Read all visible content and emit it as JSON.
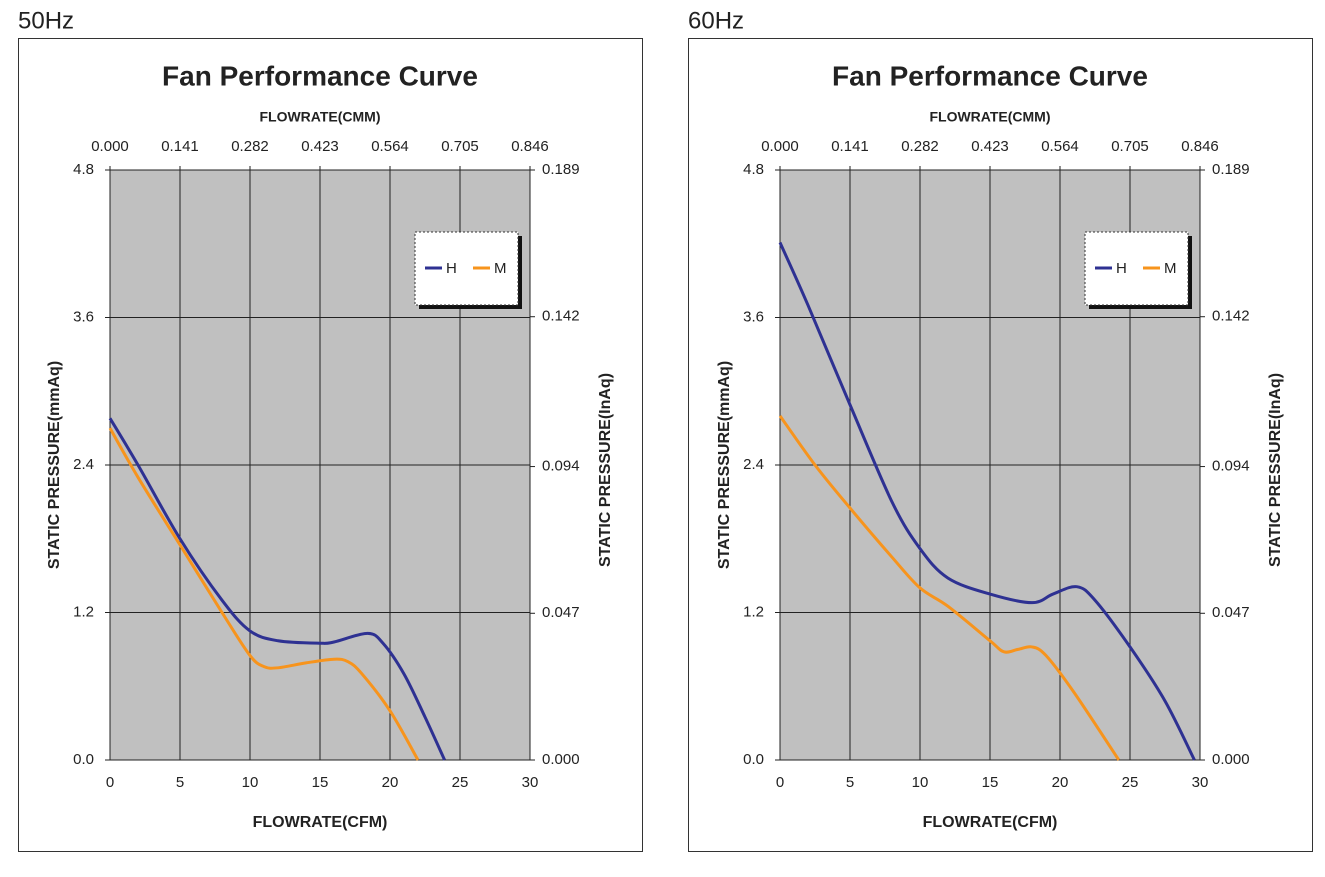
{
  "chart_data": [
    {
      "type": "line",
      "heading": "50Hz",
      "title": "Fan Performance Curve",
      "x_label": "FLOWRATE(CFM)",
      "x2_label": "FLOWRATE(CMM)",
      "y_label": "STATIC PRESSURE(mmAq)",
      "y2_label": "STATIC PRESSURE(InAq)",
      "xlim": [
        0,
        30
      ],
      "xticks": [
        0,
        5,
        10,
        15,
        20,
        25,
        30
      ],
      "x2lim": [
        0,
        0.846
      ],
      "x2ticks": [
        {
          "value": 0,
          "label": "0.000"
        },
        0.141,
        0.282,
        0.423,
        0.564,
        0.705,
        0.846
      ],
      "ylim": [
        0,
        4.8
      ],
      "yticks": [
        {
          "value": 0,
          "label": "0.0"
        },
        1.2,
        2.4,
        3.6,
        4.8
      ],
      "y2lim": [
        0,
        0.189
      ],
      "y2ticks": [
        {
          "value": 0,
          "label": "0.000"
        },
        0.047,
        0.094,
        0.142,
        0.189
      ],
      "grid": true,
      "legend": "upper right",
      "series": [
        {
          "name": "H",
          "color": "#2e3192",
          "x": [
            0,
            2,
            5,
            8,
            10,
            12,
            15,
            16,
            18.4,
            19.5,
            21,
            22.5,
            23.9
          ],
          "values": [
            2.78,
            2.4,
            1.8,
            1.3,
            1.05,
            0.97,
            0.95,
            0.96,
            1.03,
            0.95,
            0.7,
            0.35,
            0
          ]
        },
        {
          "name": "M",
          "color": "#f7941d",
          "x": [
            0,
            2,
            5,
            8,
            10,
            11,
            12,
            14,
            16,
            17,
            18,
            20,
            22
          ],
          "values": [
            2.7,
            2.3,
            1.75,
            1.2,
            0.85,
            0.76,
            0.75,
            0.79,
            0.82,
            0.8,
            0.7,
            0.4,
            0
          ]
        }
      ]
    },
    {
      "type": "line",
      "heading": "60Hz",
      "title": "Fan Performance Curve",
      "x_label": "FLOWRATE(CFM)",
      "x2_label": "FLOWRATE(CMM)",
      "y_label": "STATIC PRESSURE(mmAq)",
      "y2_label": "STATIC PRESSURE(InAq)",
      "xlim": [
        0,
        30
      ],
      "xticks": [
        0,
        5,
        10,
        15,
        20,
        25,
        30
      ],
      "x2lim": [
        0,
        0.846
      ],
      "x2ticks": [
        {
          "value": 0,
          "label": "0.000"
        },
        0.141,
        0.282,
        0.423,
        0.564,
        0.705,
        0.846
      ],
      "ylim": [
        0,
        4.8
      ],
      "yticks": [
        {
          "value": 0,
          "label": "0.0"
        },
        1.2,
        2.4,
        3.6,
        4.8
      ],
      "y2lim": [
        0,
        0.189
      ],
      "y2ticks": [
        {
          "value": 0,
          "label": "0.000"
        },
        0.047,
        0.094,
        0.142,
        0.189
      ],
      "grid": true,
      "legend": "upper right",
      "series": [
        {
          "name": "H",
          "color": "#2e3192",
          "x": [
            0,
            2,
            5,
            8,
            10,
            12,
            15,
            18,
            19.5,
            21.2,
            22.5,
            25,
            27.5,
            29.6
          ],
          "values": [
            4.21,
            3.7,
            2.89,
            2.1,
            1.72,
            1.48,
            1.35,
            1.28,
            1.35,
            1.41,
            1.3,
            0.92,
            0.48,
            0
          ]
        },
        {
          "name": "M",
          "color": "#f7941d",
          "x": [
            0,
            2.5,
            5,
            8,
            10,
            12,
            15,
            16,
            17,
            18,
            19,
            21,
            24.2
          ],
          "values": [
            2.8,
            2.4,
            2.05,
            1.65,
            1.4,
            1.25,
            0.97,
            0.88,
            0.9,
            0.92,
            0.85,
            0.55,
            0
          ]
        }
      ]
    }
  ]
}
